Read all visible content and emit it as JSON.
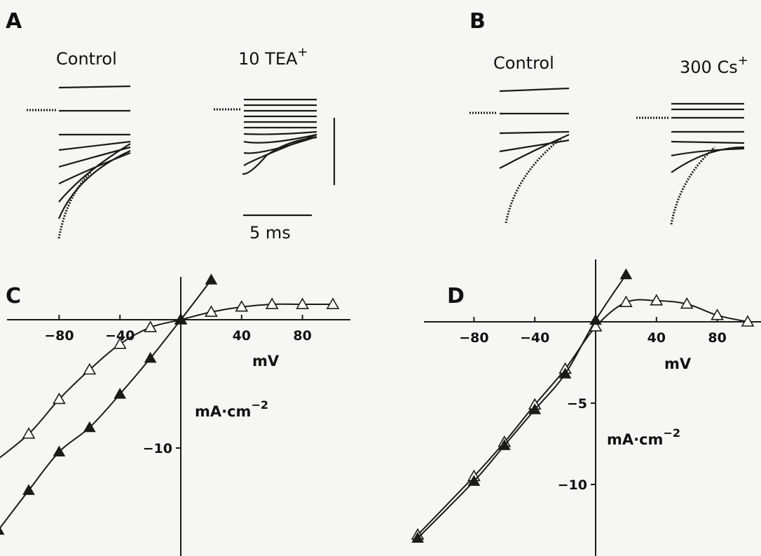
{
  "panels": {
    "A": {
      "letter": "A",
      "left_label": "Control",
      "right_label_main": "10 TEA",
      "right_label_sup": "+",
      "scale_time": "5 ms"
    },
    "B": {
      "letter": "B",
      "left_label": "Control",
      "right_label_main": "300 Cs",
      "right_label_sup": "+"
    },
    "C": {
      "letter": "C",
      "xlabel": "mV",
      "ylabel_main": "mA·cm",
      "ylabel_sup": "−2"
    },
    "D": {
      "letter": "D",
      "xlabel": "mV",
      "ylabel_main": "mA·cm",
      "ylabel_sup": "−2"
    }
  },
  "chart_data": [
    {
      "panel": "C",
      "type": "scatter",
      "xlabel": "mV",
      "ylabel": "mA·cm−2",
      "xticks": [
        "−80",
        "−40",
        "40",
        "80"
      ],
      "yticks": [
        "−10"
      ],
      "xlim": [
        -130,
        135
      ],
      "ylim": [
        -17.5,
        2.2
      ],
      "series": [
        {
          "marker": "open-triangle",
          "x": [
            -125,
            -100,
            -80,
            -60,
            -40,
            -20,
            0,
            20,
            40,
            60,
            80,
            100
          ],
          "y": [
            -11.3,
            -8.9,
            -6.2,
            -3.9,
            -1.9,
            -0.6,
            0.0,
            0.6,
            1.0,
            1.2,
            1.2,
            1.2
          ]
        },
        {
          "marker": "filled-triangle",
          "x": [
            -120,
            -100,
            -80,
            -60,
            -40,
            -20,
            0,
            20
          ],
          "y": [
            -16.4,
            -13.3,
            -10.3,
            -8.4,
            -5.8,
            -3.0,
            0.0,
            3.1
          ]
        }
      ]
    },
    {
      "panel": "D",
      "type": "scatter",
      "xlabel": "mV",
      "ylabel": "mA·cm−2",
      "xticks": [
        "−80",
        "−40",
        "40",
        "80"
      ],
      "yticks": [
        "−5",
        "−10"
      ],
      "xlim": [
        -120,
        125
      ],
      "ylim": [
        -13.5,
        3.1
      ],
      "series": [
        {
          "marker": "open-triangle",
          "x": [
            -117,
            -80,
            -60,
            -40,
            -20,
            0,
            20,
            40,
            60,
            80,
            100
          ],
          "y": [
            -13.1,
            -9.5,
            -7.4,
            -5.1,
            -2.9,
            -0.3,
            1.2,
            1.3,
            1.1,
            0.4,
            0.0
          ]
        },
        {
          "marker": "filled-triangle",
          "x": [
            -117,
            -80,
            -60,
            -40,
            -20,
            0,
            20
          ],
          "y": [
            -13.3,
            -9.8,
            -7.6,
            -5.4,
            -3.2,
            0.1,
            2.9
          ]
        }
      ]
    }
  ]
}
